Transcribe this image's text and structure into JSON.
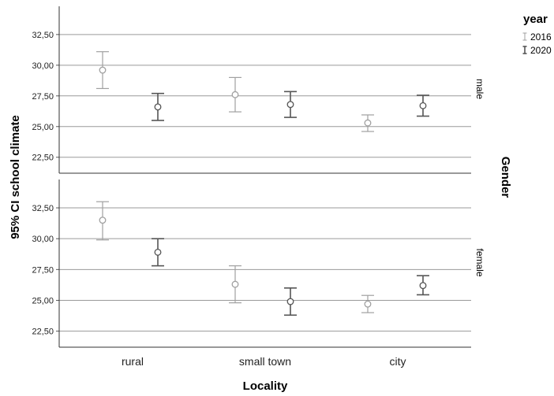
{
  "chart_data": {
    "type": "errorbar",
    "xlabel": "Locality",
    "ylabel": "95% CI school climate",
    "facet_title": "Gender",
    "categories": [
      "rural",
      "small town",
      "city"
    ],
    "yticks": [
      "22,50",
      "25,00",
      "27,50",
      "30,00",
      "32,50"
    ],
    "ytick_values": [
      22.5,
      25.0,
      27.5,
      30.0,
      32.5
    ],
    "ylim": [
      21.2,
      34.8
    ],
    "grid": "horizontal",
    "legend": {
      "title": "year",
      "position": "top-right",
      "entries": [
        {
          "label": "2016",
          "color": "#a0a0a0"
        },
        {
          "label": "2020",
          "color": "#555555"
        }
      ]
    },
    "panels": [
      {
        "label": "male",
        "series": [
          {
            "name": "2016",
            "color": "#a0a0a0",
            "mean": [
              29.6,
              27.6,
              25.3
            ],
            "low": [
              28.1,
              26.2,
              24.6
            ],
            "high": [
              31.1,
              29.0,
              25.95
            ]
          },
          {
            "name": "2020",
            "color": "#555555",
            "mean": [
              26.6,
              26.8,
              26.7
            ],
            "low": [
              25.5,
              25.75,
              25.85
            ],
            "high": [
              27.7,
              27.85,
              27.55
            ]
          }
        ]
      },
      {
        "label": "female",
        "series": [
          {
            "name": "2016",
            "color": "#a0a0a0",
            "mean": [
              31.5,
              26.3,
              24.7
            ],
            "low": [
              29.9,
              24.8,
              24.0
            ],
            "high": [
              33.0,
              27.8,
              25.4
            ]
          },
          {
            "name": "2020",
            "color": "#555555",
            "mean": [
              28.9,
              24.9,
              26.2
            ],
            "low": [
              27.8,
              23.8,
              25.45
            ],
            "high": [
              30.0,
              26.0,
              27.0
            ]
          }
        ]
      }
    ]
  }
}
